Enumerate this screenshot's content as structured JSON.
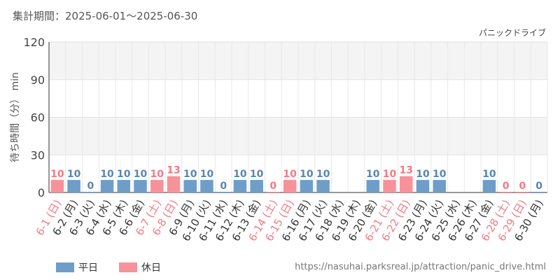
{
  "header": {
    "period": "集計期間：2025-06-01～2025-06-30"
  },
  "source_url": "https://nasuhai.parksreal.jp/attraction/panic_drive.html",
  "colors": {
    "weekday": "#6e9ec7",
    "holiday": "#f7929a",
    "weekday_label": "#5a86ae",
    "holiday_label": "#f27a85"
  },
  "chart_data": {
    "type": "bar",
    "title": "パニックドライブ",
    "ylabel": "待ち時間（分） min",
    "ylim": [
      0,
      120
    ],
    "yticks": [
      "0",
      "30",
      "60",
      "90",
      "120"
    ],
    "grid": true,
    "legend_position": "bottom-left",
    "legend": [
      {
        "key": "weekday",
        "label": "平日"
      },
      {
        "key": "holiday",
        "label": "休日"
      }
    ],
    "categories": [
      "6-1 (日)",
      "6-2 (月)",
      "6-3 (火)",
      "6-4 (水)",
      "6-5 (木)",
      "6-6 (金)",
      "6-7 (土)",
      "6-8 (日)",
      "6-9 (月)",
      "6-10 (火)",
      "6-11 (水)",
      "6-12 (木)",
      "6-13 (金)",
      "6-14 (土)",
      "6-15 (日)",
      "6-16 (月)",
      "6-17 (火)",
      "6-18 (水)",
      "6-19 (木)",
      "6-20 (金)",
      "6-21 (土)",
      "6-22 (日)",
      "6-23 (月)",
      "6-24 (火)",
      "6-25 (水)",
      "6-26 (木)",
      "6-27 (金)",
      "6-28 (土)",
      "6-29 (日)",
      "6-30 (月)"
    ],
    "values": [
      10,
      10,
      0,
      10,
      10,
      10,
      10,
      13,
      10,
      10,
      0,
      10,
      10,
      0,
      10,
      10,
      10,
      null,
      null,
      10,
      10,
      13,
      10,
      10,
      null,
      null,
      10,
      0,
      0,
      0
    ],
    "day_type": [
      "holiday",
      "weekday",
      "weekday",
      "weekday",
      "weekday",
      "weekday",
      "holiday",
      "holiday",
      "weekday",
      "weekday",
      "weekday",
      "weekday",
      "weekday",
      "holiday",
      "holiday",
      "weekday",
      "weekday",
      "weekday",
      "weekday",
      "weekday",
      "holiday",
      "holiday",
      "weekday",
      "weekday",
      "weekday",
      "weekday",
      "weekday",
      "holiday",
      "holiday",
      "weekday"
    ]
  }
}
